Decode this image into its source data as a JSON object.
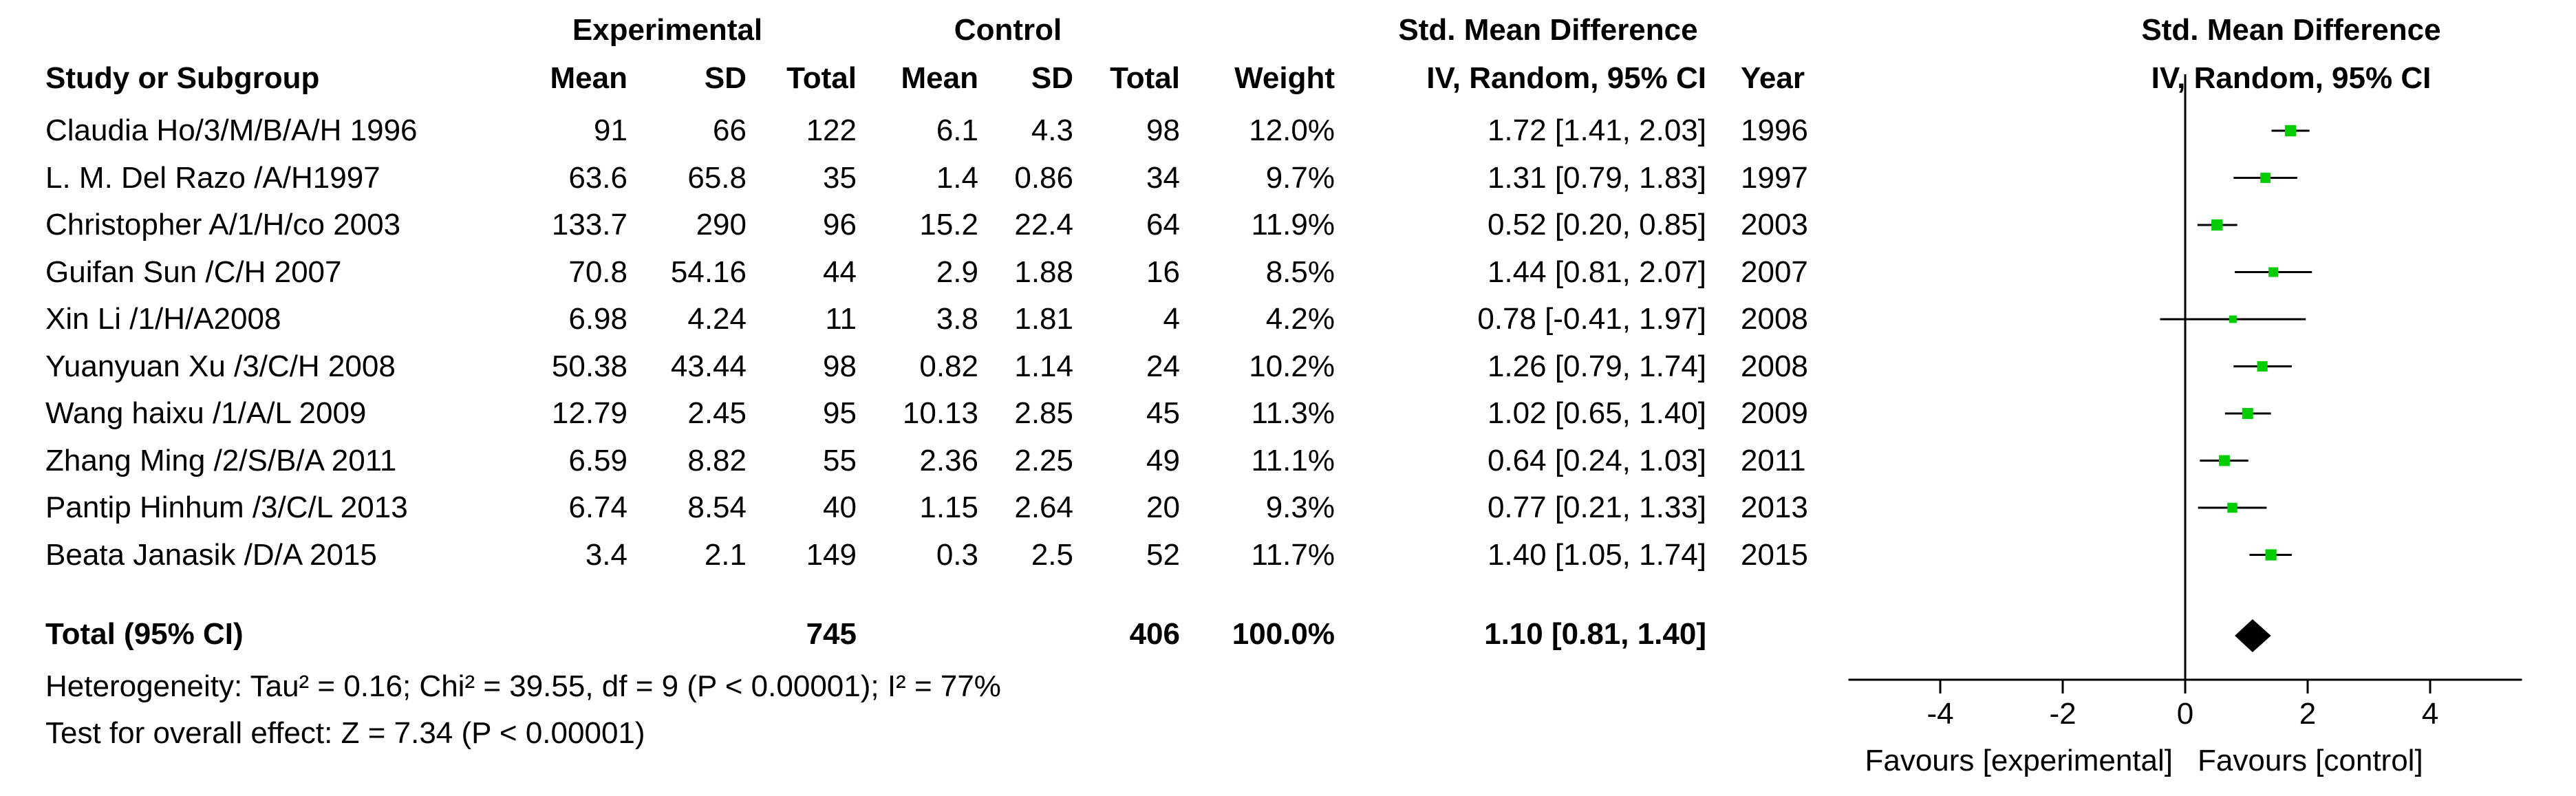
{
  "header": {
    "group1": "Experimental",
    "group2": "Control",
    "effect_title": "Std. Mean Difference",
    "plot_title": "Std. Mean Difference",
    "study_col": "Study or Subgroup",
    "mean": "Mean",
    "sd": "SD",
    "total": "Total",
    "weight": "Weight",
    "effect_sub": "IV, Random, 95% CI",
    "year": "Year",
    "plot_sub": "IV, Random, 95% CI"
  },
  "studies": [
    {
      "name": "Claudia Ho/3/M/B/A/H 1996",
      "e_mean": "91",
      "e_sd": "66",
      "e_total": "122",
      "c_mean": "6.1",
      "c_sd": "4.3",
      "c_total": "98",
      "weight": "12.0%",
      "ci_text": "1.72 [1.41, 2.03]",
      "year": "1996"
    },
    {
      "name": "L. M. Del Razo /A/H1997",
      "e_mean": "63.6",
      "e_sd": "65.8",
      "e_total": "35",
      "c_mean": "1.4",
      "c_sd": "0.86",
      "c_total": "34",
      "weight": "9.7%",
      "ci_text": "1.31 [0.79, 1.83]",
      "year": "1997"
    },
    {
      "name": "Christopher A/1/H/co 2003",
      "e_mean": "133.7",
      "e_sd": "290",
      "e_total": "96",
      "c_mean": "15.2",
      "c_sd": "22.4",
      "c_total": "64",
      "weight": "11.9%",
      "ci_text": "0.52 [0.20, 0.85]",
      "year": "2003"
    },
    {
      "name": "Guifan Sun /C/H 2007",
      "e_mean": "70.8",
      "e_sd": "54.16",
      "e_total": "44",
      "c_mean": "2.9",
      "c_sd": "1.88",
      "c_total": "16",
      "weight": "8.5%",
      "ci_text": "1.44 [0.81, 2.07]",
      "year": "2007"
    },
    {
      "name": "Xin Li /1/H/A2008",
      "e_mean": "6.98",
      "e_sd": "4.24",
      "e_total": "11",
      "c_mean": "3.8",
      "c_sd": "1.81",
      "c_total": "4",
      "weight": "4.2%",
      "ci_text": "0.78 [-0.41, 1.97]",
      "year": "2008"
    },
    {
      "name": "Yuanyuan Xu /3/C/H 2008",
      "e_mean": "50.38",
      "e_sd": "43.44",
      "e_total": "98",
      "c_mean": "0.82",
      "c_sd": "1.14",
      "c_total": "24",
      "weight": "10.2%",
      "ci_text": "1.26 [0.79, 1.74]",
      "year": "2008"
    },
    {
      "name": "Wang haixu /1/A/L 2009",
      "e_mean": "12.79",
      "e_sd": "2.45",
      "e_total": "95",
      "c_mean": "10.13",
      "c_sd": "2.85",
      "c_total": "45",
      "weight": "11.3%",
      "ci_text": "1.02 [0.65, 1.40]",
      "year": "2009"
    },
    {
      "name": "Zhang Ming /2/S/B/A 2011",
      "e_mean": "6.59",
      "e_sd": "8.82",
      "e_total": "55",
      "c_mean": "2.36",
      "c_sd": "2.25",
      "c_total": "49",
      "weight": "11.1%",
      "ci_text": "0.64 [0.24, 1.03]",
      "year": "2011"
    },
    {
      "name": "Pantip Hinhum /3/C/L 2013",
      "e_mean": "6.74",
      "e_sd": "8.54",
      "e_total": "40",
      "c_mean": "1.15",
      "c_sd": "2.64",
      "c_total": "20",
      "weight": "9.3%",
      "ci_text": "0.77 [0.21, 1.33]",
      "year": "2013"
    },
    {
      "name": "Beata Janasik /D/A 2015",
      "e_mean": "3.4",
      "e_sd": "2.1",
      "e_total": "149",
      "c_mean": "0.3",
      "c_sd": "2.5",
      "c_total": "52",
      "weight": "11.7%",
      "ci_text": "1.40 [1.05, 1.74]",
      "year": "2015"
    }
  ],
  "total": {
    "label": "Total (95% CI)",
    "e_total": "745",
    "c_total": "406",
    "weight": "100.0%",
    "ci_text": "1.10 [0.81, 1.40]"
  },
  "heterogeneity": "Heterogeneity: Tau² = 0.16; Chi² = 39.55, df = 9 (P < 0.00001); I² = 77%",
  "overall_effect": "Test for overall effect: Z = 7.34 (P < 0.00001)",
  "colors": {
    "marker": "#00cc00",
    "line": "#000000",
    "diamond": "#000000"
  },
  "chart_data": {
    "type": "forest",
    "xlim": [
      -5.5,
      5.5
    ],
    "xticks": [
      -4,
      -2,
      0,
      2,
      4
    ],
    "xtick_labels": [
      "-4",
      "-2",
      "0",
      "2",
      "4"
    ],
    "favours_left": "Favours [experimental]",
    "favours_right": "Favours [control]",
    "points": [
      {
        "est": 1.72,
        "lo": 1.41,
        "hi": 2.03,
        "weight": 12.0
      },
      {
        "est": 1.31,
        "lo": 0.79,
        "hi": 1.83,
        "weight": 9.7
      },
      {
        "est": 0.52,
        "lo": 0.2,
        "hi": 0.85,
        "weight": 11.9
      },
      {
        "est": 1.44,
        "lo": 0.81,
        "hi": 2.07,
        "weight": 8.5
      },
      {
        "est": 0.78,
        "lo": -0.41,
        "hi": 1.97,
        "weight": 4.2
      },
      {
        "est": 1.26,
        "lo": 0.79,
        "hi": 1.74,
        "weight": 10.2
      },
      {
        "est": 1.02,
        "lo": 0.65,
        "hi": 1.4,
        "weight": 11.3
      },
      {
        "est": 0.64,
        "lo": 0.24,
        "hi": 1.03,
        "weight": 11.1
      },
      {
        "est": 0.77,
        "lo": 0.21,
        "hi": 1.33,
        "weight": 9.3
      },
      {
        "est": 1.4,
        "lo": 1.05,
        "hi": 1.74,
        "weight": 11.7
      }
    ],
    "pooled": {
      "est": 1.1,
      "lo": 0.81,
      "hi": 1.4
    }
  }
}
